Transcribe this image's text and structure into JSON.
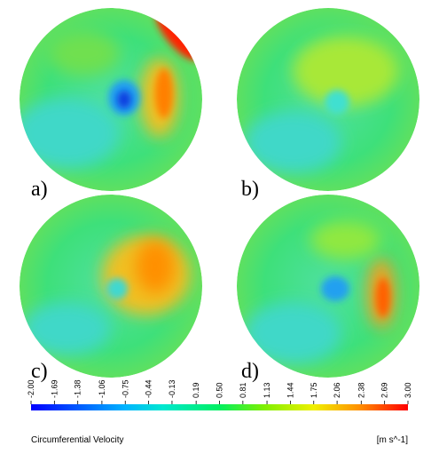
{
  "panels": [
    {
      "label": "a)"
    },
    {
      "label": "b)"
    },
    {
      "label": "c)"
    },
    {
      "label": "d)"
    }
  ],
  "colorbar": {
    "title": "Circumferential Velocity",
    "unit": "[m s^-1]",
    "ticks": [
      {
        "value": -2,
        "label": "-2.00"
      },
      {
        "value": -1.69,
        "label": "-1.69"
      },
      {
        "value": -1.38,
        "label": "-1.38"
      },
      {
        "value": -1.06,
        "label": "-1.06"
      },
      {
        "value": -0.75,
        "label": "-0.75"
      },
      {
        "value": -0.44,
        "label": "-0.44"
      },
      {
        "value": -0.13,
        "label": "-0.13"
      },
      {
        "value": 0.19,
        "label": "0.19"
      },
      {
        "value": 0.5,
        "label": "0.50"
      },
      {
        "value": 0.81,
        "label": "0.81"
      },
      {
        "value": 1.13,
        "label": "1.13"
      },
      {
        "value": 1.44,
        "label": "1.44"
      },
      {
        "value": 1.75,
        "label": "1.75"
      },
      {
        "value": 2.06,
        "label": "2.06"
      },
      {
        "value": 2.38,
        "label": "2.38"
      },
      {
        "value": 2.69,
        "label": "2.69"
      },
      {
        "value": 3,
        "label": "3.00"
      }
    ]
  }
}
